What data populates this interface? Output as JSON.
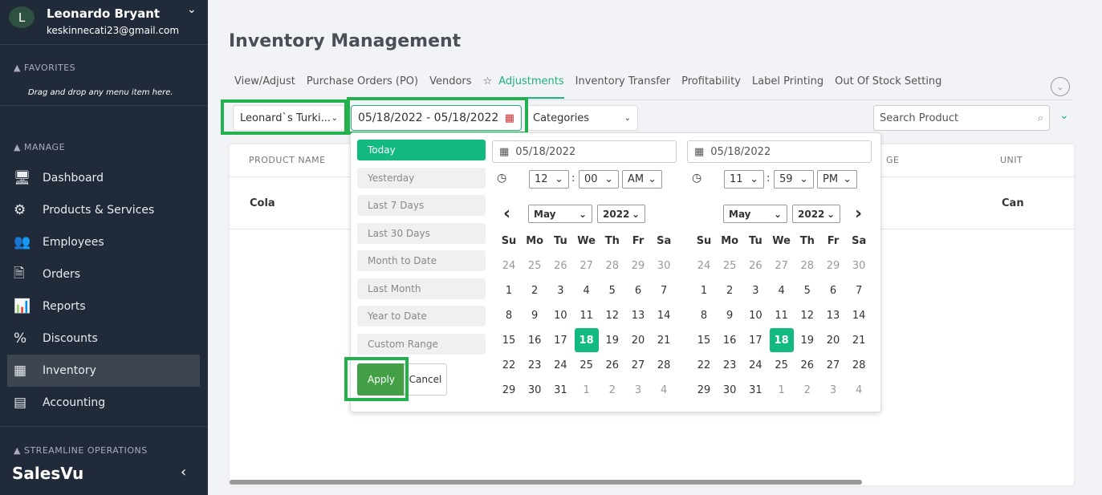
{
  "user": {
    "initial": "L",
    "name": "Leonardo Bryant",
    "email": "keskinnecati23@gmail.com"
  },
  "sidebar": {
    "favorites_label": "FAVORITES",
    "favorites_hint": "Drag and drop any menu item here.",
    "manage_label": "MANAGE",
    "items": [
      {
        "label": "Dashboard",
        "icon": "monitor-icon",
        "glyph": "🖥"
      },
      {
        "label": "Products & Services",
        "icon": "products-icon",
        "glyph": "⚙"
      },
      {
        "label": "Employees",
        "icon": "employees-icon",
        "glyph": "👥"
      },
      {
        "label": "Orders",
        "icon": "orders-icon",
        "glyph": "🗎"
      },
      {
        "label": "Reports",
        "icon": "reports-icon",
        "glyph": "📊"
      },
      {
        "label": "Discounts",
        "icon": "percent-icon",
        "glyph": "%"
      },
      {
        "label": "Inventory",
        "icon": "inventory-icon",
        "glyph": "▦",
        "active": true
      },
      {
        "label": "Accounting",
        "icon": "calculator-icon",
        "glyph": "▤"
      }
    ],
    "streamline_label": "STREAMLINE OPERATIONS",
    "logo": "SalesVu"
  },
  "page": {
    "title": "Inventory Management"
  },
  "tabs": [
    {
      "label": "View/Adjust"
    },
    {
      "label": "Purchase Orders (PO)"
    },
    {
      "label": "Vendors"
    },
    {
      "label": "Adjustments",
      "active": true,
      "star": "☆"
    },
    {
      "label": "Inventory Transfer"
    },
    {
      "label": "Profitability"
    },
    {
      "label": "Label Printing"
    },
    {
      "label": "Out Of Stock Setting"
    }
  ],
  "filters": {
    "location": "Leonard`s Turki...",
    "date_range": "05/18/2022 - 05/18/2022",
    "category": "Categories",
    "search_placeholder": "Search Product"
  },
  "table": {
    "headers": [
      "PRODUCT NAME",
      "GE",
      "UNIT"
    ],
    "rows": [
      {
        "name": "Cola",
        "unit": "Can"
      }
    ]
  },
  "datepicker": {
    "ranges": [
      "Today",
      "Yesterday",
      "Last 7 Days",
      "Last 30 Days",
      "Month to Date",
      "Last Month",
      "Year to Date",
      "Custom Range"
    ],
    "active_range": "Today",
    "apply": "Apply",
    "cancel": "Cancel",
    "weekdays": [
      "Su",
      "Mo",
      "Tu",
      "We",
      "Th",
      "Fr",
      "Sa"
    ],
    "calendars": [
      {
        "date": "05/18/2022",
        "hour": "12",
        "minute": "00",
        "ampm": "AM",
        "month": "May",
        "year": "2022",
        "selected": 18
      },
      {
        "date": "05/18/2022",
        "hour": "11",
        "minute": "59",
        "ampm": "PM",
        "month": "May",
        "year": "2022",
        "selected": 18
      }
    ],
    "weeks": [
      [
        24,
        25,
        26,
        27,
        28,
        29,
        30
      ],
      [
        1,
        2,
        3,
        4,
        5,
        6,
        7
      ],
      [
        8,
        9,
        10,
        11,
        12,
        13,
        14
      ],
      [
        15,
        16,
        17,
        18,
        19,
        20,
        21
      ],
      [
        22,
        23,
        24,
        25,
        26,
        27,
        28
      ],
      [
        29,
        30,
        31,
        1,
        2,
        3,
        4
      ]
    ],
    "accent": "#12b981"
  }
}
